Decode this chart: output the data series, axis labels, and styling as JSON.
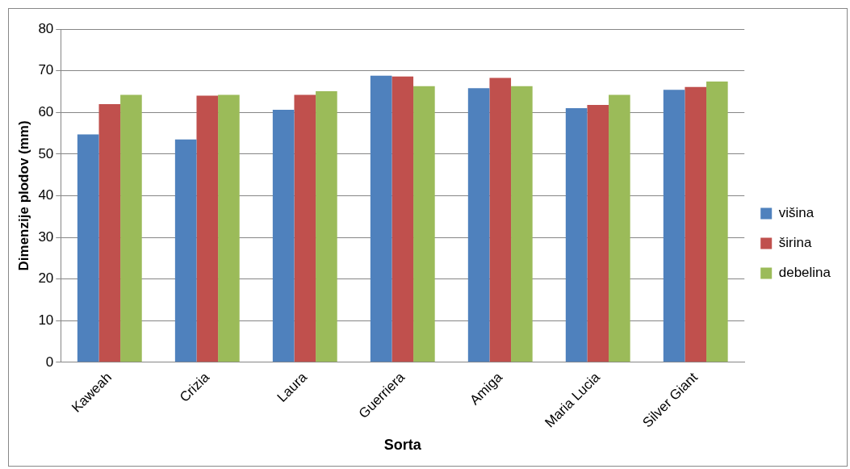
{
  "chart_data": {
    "type": "bar",
    "xlabel": "Sorta",
    "ylabel": "Dimenzije plodov (mm)",
    "categories": [
      "Kaweah",
      "Crizia",
      "Laura",
      "Guerriera",
      "Amiga",
      "Maria Lucia",
      "Silver Giant"
    ],
    "series": [
      {
        "name": "višina",
        "color": "#4f81bd",
        "values": [
          54.7,
          53.5,
          60.6,
          68.8,
          65.8,
          61.0,
          65.4
        ]
      },
      {
        "name": "širina",
        "color": "#c0504d",
        "values": [
          62.0,
          64.0,
          64.2,
          68.6,
          68.3,
          61.8,
          66.1
        ]
      },
      {
        "name": "debelina",
        "color": "#9bbb59",
        "values": [
          64.2,
          64.2,
          65.1,
          66.3,
          66.3,
          64.2,
          67.4
        ]
      }
    ],
    "ylim": [
      0,
      80
    ],
    "yticks": [
      0,
      10,
      20,
      30,
      40,
      50,
      60,
      70,
      80
    ],
    "grid": "y",
    "legend": "right"
  }
}
